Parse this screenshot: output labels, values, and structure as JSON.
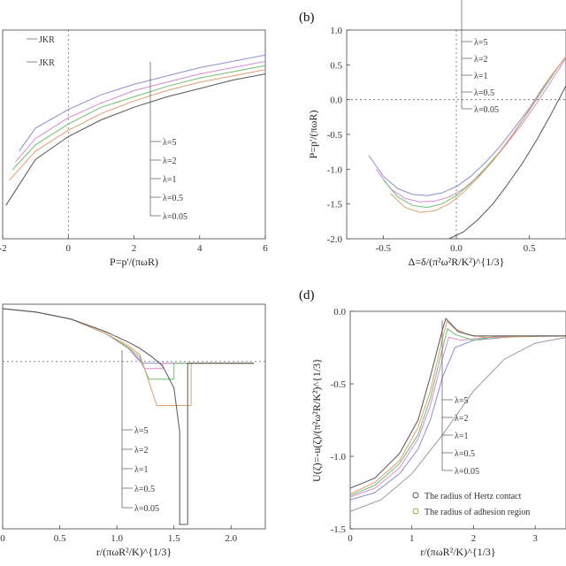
{
  "chart_data": [
    {
      "panel": "",
      "type": "line",
      "xlabel": "P=p'/(πωR)",
      "xticks": [
        "-2",
        "0",
        "2",
        "4",
        "6"
      ],
      "xlim": [
        -2,
        6
      ],
      "ylim": [
        0,
        1
      ],
      "annotations": [
        "JKR",
        "JKR"
      ],
      "legend": [
        "λ=5",
        "λ=2",
        "λ=1",
        "λ=0.5",
        "λ=0.05"
      ],
      "series": [
        {
          "name": "λ=5",
          "x": [
            -1.5,
            -1.0,
            0.0,
            1.0,
            2.0,
            3.0,
            4.0,
            5.0,
            6.0
          ],
          "y": [
            0.42,
            0.53,
            0.62,
            0.69,
            0.74,
            0.78,
            0.82,
            0.85,
            0.88
          ]
        },
        {
          "name": "λ=2",
          "x": [
            -1.6,
            -1.0,
            0.0,
            1.0,
            2.0,
            3.0,
            4.0,
            5.0,
            6.0
          ],
          "y": [
            0.37,
            0.48,
            0.58,
            0.65,
            0.71,
            0.75,
            0.79,
            0.82,
            0.85
          ]
        },
        {
          "name": "λ=1",
          "x": [
            -1.7,
            -1.0,
            0.0,
            1.0,
            2.0,
            3.0,
            4.0,
            5.0,
            6.0
          ],
          "y": [
            0.33,
            0.45,
            0.55,
            0.63,
            0.68,
            0.73,
            0.77,
            0.8,
            0.83
          ]
        },
        {
          "name": "λ=0.5",
          "x": [
            -1.8,
            -1.0,
            0.0,
            1.0,
            2.0,
            3.0,
            4.0,
            5.0,
            6.0
          ],
          "y": [
            0.28,
            0.42,
            0.52,
            0.6,
            0.66,
            0.71,
            0.75,
            0.78,
            0.81
          ]
        },
        {
          "name": "λ=0.05",
          "x": [
            -1.9,
            -1.0,
            0.0,
            1.0,
            2.0,
            3.0,
            4.0,
            5.0,
            6.0
          ],
          "y": [
            0.16,
            0.38,
            0.49,
            0.57,
            0.63,
            0.68,
            0.72,
            0.76,
            0.79
          ]
        }
      ]
    },
    {
      "panel": "(b)",
      "type": "line",
      "xlabel": "Δ=δ/(π²ω²R/K²)^{1/3}",
      "ylabel": "P=p'/(πωR)",
      "xticks": [
        "-0.5",
        "0.0",
        "0.5"
      ],
      "yticks": [
        "1.0",
        "0.5",
        "0.0",
        "-0.5",
        "-1.0",
        "-1.5",
        "-2.0"
      ],
      "xlim": [
        -0.75,
        0.75
      ],
      "ylim": [
        -2.0,
        1.0
      ],
      "legend": [
        "λ=5",
        "λ=2",
        "λ=1",
        "λ=0.5",
        "λ=0.05"
      ],
      "series": [
        {
          "name": "λ=5",
          "x": [
            -0.6,
            -0.5,
            -0.4,
            -0.3,
            -0.2,
            -0.1,
            0.0,
            0.1,
            0.2,
            0.3,
            0.4,
            0.5,
            0.6,
            0.75
          ],
          "y": [
            -0.8,
            -1.1,
            -1.28,
            -1.36,
            -1.38,
            -1.34,
            -1.25,
            -1.1,
            -0.9,
            -0.67,
            -0.4,
            -0.12,
            0.2,
            0.62
          ]
        },
        {
          "name": "λ=2",
          "x": [
            -0.55,
            -0.45,
            -0.35,
            -0.25,
            -0.15,
            -0.05,
            0.05,
            0.15,
            0.25,
            0.35,
            0.45,
            0.55,
            0.65,
            0.75
          ],
          "y": [
            -1.0,
            -1.28,
            -1.42,
            -1.47,
            -1.46,
            -1.4,
            -1.28,
            -1.1,
            -0.88,
            -0.62,
            -0.35,
            -0.05,
            0.27,
            0.6
          ]
        },
        {
          "name": "λ=1",
          "x": [
            -0.5,
            -0.4,
            -0.3,
            -0.2,
            -0.1,
            0.0,
            0.1,
            0.2,
            0.3,
            0.4,
            0.5,
            0.6,
            0.7,
            0.75
          ],
          "y": [
            -1.15,
            -1.4,
            -1.52,
            -1.55,
            -1.5,
            -1.38,
            -1.2,
            -0.98,
            -0.74,
            -0.46,
            -0.15,
            0.17,
            0.48,
            0.62
          ]
        },
        {
          "name": "λ=0.5",
          "x": [
            -0.45,
            -0.35,
            -0.25,
            -0.15,
            -0.05,
            0.05,
            0.15,
            0.25,
            0.35,
            0.45,
            0.55,
            0.65,
            0.75
          ],
          "y": [
            -1.35,
            -1.55,
            -1.62,
            -1.6,
            -1.5,
            -1.33,
            -1.12,
            -0.88,
            -0.6,
            -0.3,
            0.02,
            0.35,
            0.62
          ]
        },
        {
          "name": "λ=0.05",
          "x": [
            -0.05,
            0.05,
            0.15,
            0.25,
            0.35,
            0.45,
            0.55,
            0.65,
            0.75
          ],
          "y": [
            -2.0,
            -1.9,
            -1.72,
            -1.5,
            -1.22,
            -0.92,
            -0.58,
            -0.2,
            0.2
          ]
        }
      ]
    },
    {
      "panel": "",
      "type": "line",
      "xlabel": "r/(πωR²/K)^{1/3}",
      "xticks": [
        "0",
        "0.5",
        "1.0",
        "1.5",
        "2.0"
      ],
      "xlim": [
        0,
        2.3
      ],
      "ylim": [
        -1.9,
        0.65
      ],
      "legend": [
        "λ=5",
        "λ=2",
        "λ=1",
        "λ=0.5",
        "λ=0.05"
      ],
      "series": [
        {
          "name": "λ=5",
          "x": [
            0,
            0.3,
            0.6,
            0.9,
            1.1,
            1.2,
            1.22,
            1.22,
            1.35,
            1.35,
            2.2
          ],
          "y": [
            0.6,
            0.56,
            0.48,
            0.32,
            0.15,
            0.0,
            -0.02,
            -0.02,
            -0.02,
            -0.02,
            -0.02
          ]
        },
        {
          "name": "λ=2",
          "x": [
            0,
            0.3,
            0.6,
            0.9,
            1.1,
            1.2,
            1.24,
            1.24,
            1.4,
            1.4,
            2.2
          ],
          "y": [
            0.6,
            0.56,
            0.48,
            0.32,
            0.15,
            0.02,
            -0.08,
            -0.08,
            -0.08,
            -0.02,
            -0.02
          ]
        },
        {
          "name": "λ=1",
          "x": [
            0,
            0.3,
            0.6,
            0.9,
            1.1,
            1.2,
            1.28,
            1.28,
            1.5,
            1.5,
            2.2
          ],
          "y": [
            0.6,
            0.56,
            0.48,
            0.32,
            0.16,
            0.05,
            -0.2,
            -0.2,
            -0.2,
            -0.02,
            -0.02
          ]
        },
        {
          "name": "λ=0.5",
          "x": [
            0,
            0.3,
            0.6,
            0.9,
            1.1,
            1.2,
            1.35,
            1.35,
            1.65,
            1.65,
            2.2
          ],
          "y": [
            0.6,
            0.56,
            0.48,
            0.32,
            0.18,
            0.08,
            -0.5,
            -0.5,
            -0.5,
            -0.02,
            -0.02
          ]
        },
        {
          "name": "λ=0.05",
          "x": [
            0,
            0.3,
            0.6,
            0.9,
            1.1,
            1.2,
            1.3,
            1.4,
            1.5,
            1.55,
            1.55,
            1.62,
            1.62,
            2.2
          ],
          "y": [
            0.6,
            0.56,
            0.48,
            0.34,
            0.22,
            0.15,
            0.06,
            -0.05,
            -0.3,
            -0.8,
            -1.85,
            -1.85,
            -0.02,
            -0.02
          ]
        }
      ]
    },
    {
      "panel": "(d)",
      "type": "line",
      "xlabel": "r/(πωR²/K)^{1/3}",
      "ylabel": "U(ζ)=-u(ζ)/(π²ω²R/K²)^{1/3}",
      "xticks": [
        "0",
        "1",
        "2",
        "3"
      ],
      "yticks": [
        "0.0",
        "-0.5",
        "-1.0",
        "-1.5"
      ],
      "xlim": [
        0,
        3.5
      ],
      "ylim": [
        -1.5,
        0.0
      ],
      "legend": [
        "λ=5",
        "λ=2",
        "λ=1",
        "λ=0.5",
        "λ=0.05"
      ],
      "markers": [
        "The radius of Hertz contact",
        "The radius of adhesion region"
      ],
      "series": [
        {
          "name": "λ=5",
          "x": [
            0,
            0.4,
            0.8,
            1.1,
            1.3,
            1.5,
            1.7,
            2.0,
            2.5,
            3.0,
            3.5
          ],
          "y": [
            -1.3,
            -1.25,
            -1.12,
            -0.95,
            -0.75,
            -0.45,
            -0.25,
            -0.2,
            -0.18,
            -0.17,
            -0.17
          ]
        },
        {
          "name": "λ=2",
          "x": [
            0,
            0.4,
            0.8,
            1.1,
            1.3,
            1.5,
            1.6,
            1.8,
            2.2,
            3.0,
            3.5
          ],
          "y": [
            -1.28,
            -1.22,
            -1.08,
            -0.88,
            -0.65,
            -0.32,
            -0.18,
            -0.2,
            -0.18,
            -0.17,
            -0.17
          ]
        },
        {
          "name": "λ=1",
          "x": [
            0,
            0.4,
            0.8,
            1.1,
            1.3,
            1.5,
            1.58,
            1.7,
            2.0,
            2.4,
            3.5
          ],
          "y": [
            -1.27,
            -1.2,
            -1.05,
            -0.85,
            -0.6,
            -0.25,
            -0.12,
            -0.16,
            -0.2,
            -0.17,
            -0.17
          ]
        },
        {
          "name": "λ=0.5",
          "x": [
            0,
            0.4,
            0.8,
            1.1,
            1.3,
            1.5,
            1.57,
            1.7,
            1.9,
            2.2,
            3.5
          ],
          "y": [
            -1.26,
            -1.18,
            -1.03,
            -0.8,
            -0.55,
            -0.18,
            -0.07,
            -0.12,
            -0.16,
            -0.18,
            -0.17
          ]
        },
        {
          "name": "λ=0.05",
          "x": [
            0,
            0.4,
            0.8,
            1.1,
            1.3,
            1.5,
            1.55,
            1.62,
            1.75,
            2.0,
            3.5
          ],
          "y": [
            -1.22,
            -1.15,
            -0.98,
            -0.75,
            -0.45,
            -0.12,
            -0.05,
            -0.08,
            -0.14,
            -0.17,
            -0.17
          ]
        },
        {
          "name": "",
          "x": [
            0,
            0.5,
            1.0,
            1.5,
            2.0,
            2.5,
            3.0,
            3.5
          ],
          "y": [
            -1.38,
            -1.3,
            -1.12,
            -0.85,
            -0.55,
            -0.33,
            -0.22,
            -0.18
          ]
        }
      ]
    }
  ]
}
